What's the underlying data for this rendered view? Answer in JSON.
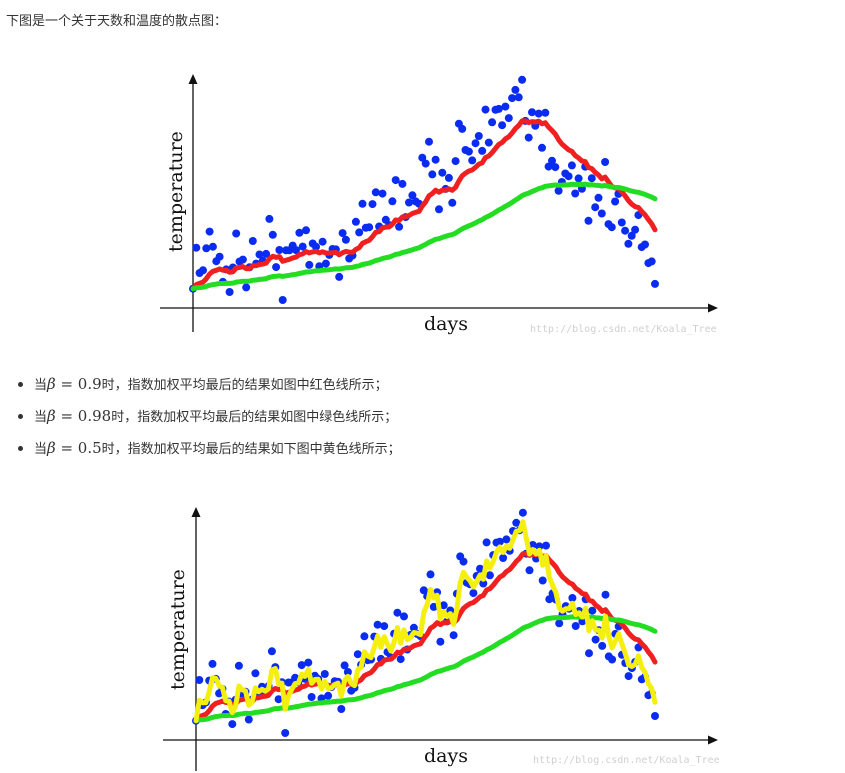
{
  "intro_text": "下图是一个关于天数和温度的散点图：",
  "bullets": [
    {
      "prefix": "当",
      "beta": "β",
      "eq": " = ",
      "value": "0.9",
      "suffix": "时，指数加权平均最后的结果如图中红色线所示；"
    },
    {
      "prefix": "当",
      "beta": "β",
      "eq": " = ",
      "value": "0.98",
      "suffix": "时，指数加权平均最后的结果如图中绿色线所示；"
    },
    {
      "prefix": "当",
      "beta": "β",
      "eq": " = ",
      "value": "0.5",
      "suffix": "时，指数加权平均最后的结果如下图中黄色线所示；"
    }
  ],
  "watermark": "http://blog.csdn.net/Koala_Tree",
  "colors": {
    "scatter": "#0a2cf0",
    "red": "#f02020",
    "green": "#22dd22",
    "yellow": "#f5ef10"
  },
  "chart_data": [
    {
      "type": "scatter",
      "xlabel": "days",
      "ylabel": "temperature",
      "series": [
        {
          "name": "",
          "kind": "scatter",
          "color": "#0a2cf0"
        },
        {
          "name": "",
          "kind": "line",
          "beta": 0.9,
          "color": "#f02020"
        },
        {
          "name": "",
          "kind": "line",
          "beta": 0.98,
          "color": "#22dd22"
        }
      ]
    },
    {
      "type": "scatter",
      "xlabel": "days",
      "ylabel": "temperature",
      "series": [
        {
          "name": "",
          "kind": "scatter",
          "color": "#0a2cf0"
        },
        {
          "name": "",
          "kind": "line",
          "beta": 0.9,
          "color": "#f02020"
        },
        {
          "name": "",
          "kind": "line",
          "beta": 0.98,
          "color": "#22dd22"
        },
        {
          "name": "",
          "kind": "line",
          "beta": 0.5,
          "color": "#f5ef10"
        }
      ]
    }
  ]
}
